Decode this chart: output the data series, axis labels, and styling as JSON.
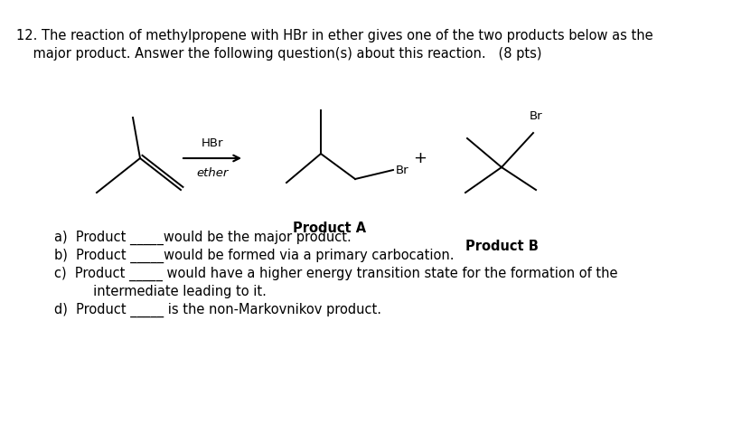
{
  "background_color": "#ffffff",
  "title_line1": "12. The reaction of methylpropene with HBr in ether gives one of the two products below as the",
  "title_line2": "    major product. Answer the following question(s) about this reaction.   (8 pts)",
  "reagent_label": "HBr",
  "solvent_label": "ether",
  "plus_sign": "+",
  "br_label_A": "Br",
  "br_label_B": "Br",
  "product_a_label": "Product A",
  "product_b_label": "Product B",
  "questions": [
    "a)  Product _____would be the major product.",
    "b)  Product _____would be formed via a primary carbocation.",
    "c)  Product _____ would have a higher energy transition state for the formation of the",
    "     intermediate leading to it.",
    "d)  Product _____ is the non-Markovnikov product."
  ],
  "font_size_main": 10.5,
  "font_size_questions": 10.5,
  "font_size_labels": 9.5,
  "font_size_product": 10.5,
  "font_size_br": 9.5
}
